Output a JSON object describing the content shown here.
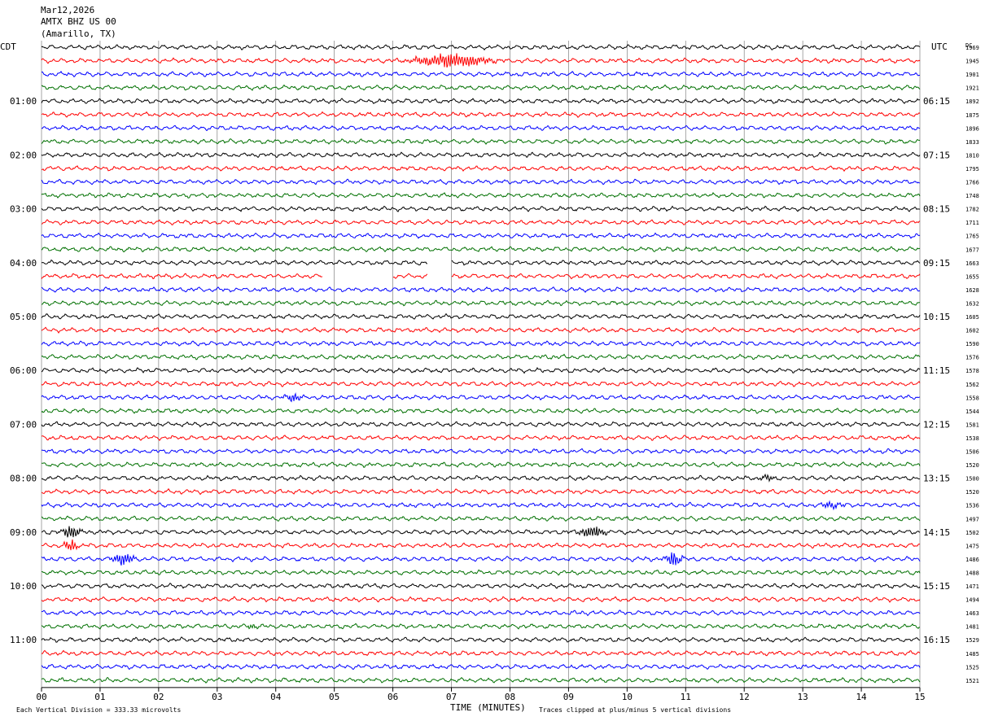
{
  "header": {
    "date": "Mar12,2026",
    "station": "AMTX BHZ US 00",
    "location": "(Amarillo, TX)"
  },
  "left_zone_label": "CDT",
  "right_zone_label": "UTC",
  "right_column_label": "DC",
  "footer": {
    "scale_note": "Each Vertical Division =  333.33 microvolts",
    "xlabel": "TIME (MINUTES)",
    "clip_note": "Traces clipped at plus/minus 5 vertical divisions"
  },
  "colors": {
    "traces": [
      "#000000",
      "#ff0000",
      "#0000ff",
      "#007000"
    ],
    "grid": "#808080",
    "text": "#000000"
  },
  "chart_data": {
    "type": "line",
    "title": "AMTX BHZ US 00",
    "xlabel": "TIME (MINUTES)",
    "xlim": [
      0,
      15
    ],
    "x_ticks": [
      "00",
      "01",
      "02",
      "03",
      "04",
      "05",
      "06",
      "07",
      "08",
      "09",
      "10",
      "11",
      "12",
      "13",
      "14",
      "15"
    ],
    "row_count": 48,
    "left_hour_labels": [
      "01:00",
      "02:00",
      "03:00",
      "04:00",
      "05:00",
      "06:00",
      "07:00",
      "08:00",
      "09:00",
      "10:00",
      "11:00"
    ],
    "right_hour_labels": [
      "06:15",
      "07:15",
      "08:15",
      "09:15",
      "10:15",
      "11:15",
      "12:15",
      "13:15",
      "14:15",
      "15:15",
      "16:15"
    ],
    "dc_offsets": [
      1969,
      1945,
      1901,
      1921,
      1892,
      1875,
      1896,
      1833,
      1810,
      1795,
      1766,
      1748,
      1782,
      1711,
      1765,
      1677,
      1663,
      1655,
      1628,
      1632,
      1605,
      1602,
      1590,
      1576,
      1578,
      1562,
      1558,
      1544,
      1581,
      1538,
      1506,
      1520,
      1500,
      1520,
      1536,
      1497,
      1502,
      1475,
      1486,
      1488,
      1471,
      1494,
      1463,
      1481,
      1529,
      1485,
      1525,
      1521
    ],
    "events": [
      {
        "row": 1,
        "minute": 7.0,
        "width_min": 1.6,
        "amplitude_div": 1.4
      },
      {
        "row": 26,
        "minute": 4.3,
        "width_min": 0.5,
        "amplitude_div": 0.6
      },
      {
        "row": 32,
        "minute": 12.4,
        "width_min": 0.4,
        "amplitude_div": 0.5
      },
      {
        "row": 34,
        "minute": 13.5,
        "width_min": 0.6,
        "amplitude_div": 0.5
      },
      {
        "row": 36,
        "minute": 0.5,
        "width_min": 0.4,
        "amplitude_div": 1.2
      },
      {
        "row": 36,
        "minute": 9.4,
        "width_min": 0.6,
        "amplitude_div": 1.1
      },
      {
        "row": 37,
        "minute": 0.5,
        "width_min": 0.3,
        "amplitude_div": 1.0
      },
      {
        "row": 38,
        "minute": 1.4,
        "width_min": 0.5,
        "amplitude_div": 1.0
      },
      {
        "row": 38,
        "minute": 10.8,
        "width_min": 0.4,
        "amplitude_div": 1.3
      },
      {
        "row": 43,
        "minute": 3.6,
        "width_min": 0.3,
        "amplitude_div": 0.5
      }
    ],
    "gaps": [
      {
        "row": 17,
        "start_min": 4.8,
        "end_min": 6.0
      },
      {
        "row": 17,
        "start_min": 6.6,
        "end_min": 7.0
      },
      {
        "row": 16,
        "start_min": 6.6,
        "end_min": 7.0
      }
    ]
  }
}
